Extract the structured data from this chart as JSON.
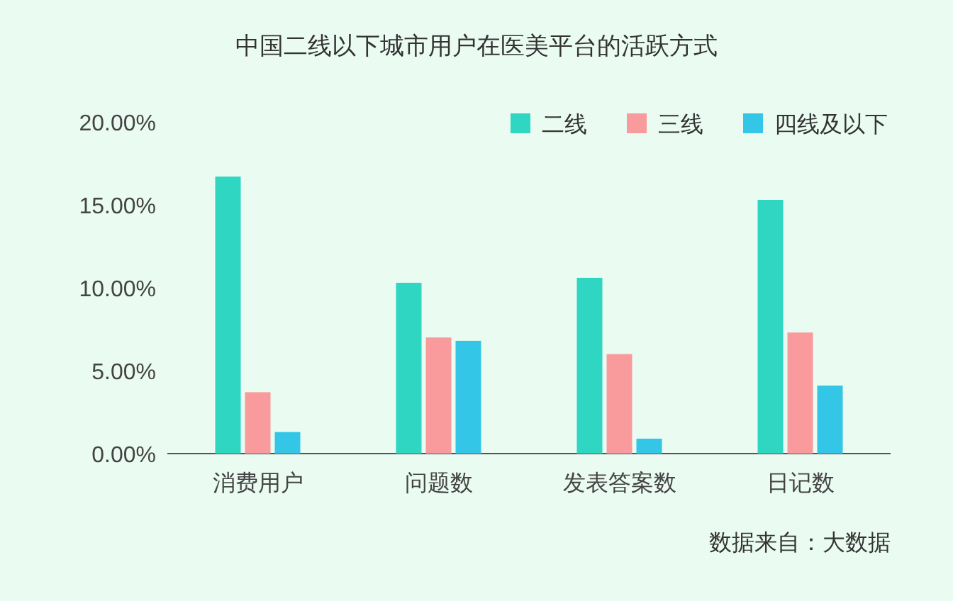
{
  "chart_data": {
    "type": "bar",
    "title": "中国二线以下城市用户在医美平台的活跃方式",
    "categories": [
      "消费用户",
      "问题数",
      "发表答案数",
      "日记数"
    ],
    "series": [
      {
        "name": "二线",
        "color": "#2fd6c1",
        "values": [
          16.7,
          10.3,
          10.6,
          15.3
        ]
      },
      {
        "name": "三线",
        "color": "#f99a9c",
        "values": [
          3.7,
          7.0,
          6.0,
          7.3
        ]
      },
      {
        "name": "四线及以下",
        "color": "#33c6e6",
        "values": [
          1.3,
          6.8,
          0.9,
          4.1
        ]
      }
    ],
    "ylim": [
      0,
      20
    ],
    "yticks": [
      {
        "value": 0,
        "label": "0.00%"
      },
      {
        "value": 5,
        "label": "5.00%"
      },
      {
        "value": 10,
        "label": "10.00%"
      },
      {
        "value": 15,
        "label": "15.00%"
      },
      {
        "value": 20,
        "label": "20.00%"
      }
    ],
    "grid": false,
    "legend": "top right",
    "annotations": [
      "数据来自：大数据"
    ]
  }
}
